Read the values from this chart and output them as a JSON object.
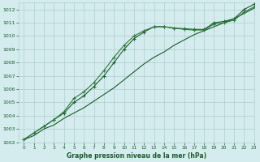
{
  "bg_color": "#d4ecee",
  "grid_color": "#aecdd0",
  "line_color_dark": "#1a5c2a",
  "line_color_mid": "#2d7a3a",
  "xlabel": "Graphe pression niveau de la mer (hPa)",
  "ylim": [
    1002,
    1012.5
  ],
  "xlim": [
    -0.5,
    23
  ],
  "yticks": [
    1002,
    1003,
    1004,
    1005,
    1006,
    1007,
    1008,
    1009,
    1010,
    1011,
    1012
  ],
  "xticks": [
    0,
    1,
    2,
    3,
    4,
    5,
    6,
    7,
    8,
    9,
    10,
    11,
    12,
    13,
    14,
    15,
    16,
    17,
    18,
    19,
    20,
    21,
    22,
    23
  ],
  "series1": {
    "x": [
      0,
      1,
      2,
      3,
      4,
      5,
      6,
      7,
      8,
      9,
      10,
      11,
      12,
      13,
      14,
      15,
      16,
      17,
      18,
      19,
      20,
      21,
      22,
      23
    ],
    "y": [
      1002.2,
      1002.5,
      1003.0,
      1003.3,
      1003.8,
      1004.2,
      1004.6,
      1005.1,
      1005.6,
      1006.1,
      1006.7,
      1007.3,
      1007.9,
      1008.4,
      1008.8,
      1009.3,
      1009.7,
      1010.1,
      1010.4,
      1010.7,
      1011.0,
      1011.3,
      1011.7,
      1012.1
    ]
  },
  "series2": {
    "x": [
      0,
      1,
      2,
      3,
      4,
      5,
      6,
      7,
      8,
      9,
      10,
      11,
      12,
      13,
      14,
      15,
      16,
      17,
      18,
      19,
      20,
      21,
      22,
      23
    ],
    "y": [
      1002.2,
      1002.7,
      1003.2,
      1003.7,
      1004.2,
      1005.0,
      1005.5,
      1006.2,
      1007.0,
      1008.0,
      1009.0,
      1009.8,
      1010.3,
      1010.7,
      1010.7,
      1010.6,
      1010.55,
      1010.5,
      1010.5,
      1011.0,
      1011.1,
      1011.3,
      1012.0,
      1012.4
    ]
  },
  "series3": {
    "x": [
      0,
      1,
      2,
      3,
      4,
      5,
      6,
      7,
      8,
      9,
      10,
      11,
      12,
      13,
      14,
      15,
      16,
      17,
      18,
      19,
      20,
      21,
      22,
      23
    ],
    "y": [
      1002.2,
      1002.7,
      1003.2,
      1003.7,
      1004.3,
      1005.3,
      1005.8,
      1006.5,
      1007.4,
      1008.4,
      1009.3,
      1010.0,
      1010.4,
      1010.7,
      1010.7,
      1010.6,
      1010.5,
      1010.45,
      1010.45,
      1010.9,
      1011.0,
      1011.2,
      1011.8,
      1012.2
    ]
  }
}
